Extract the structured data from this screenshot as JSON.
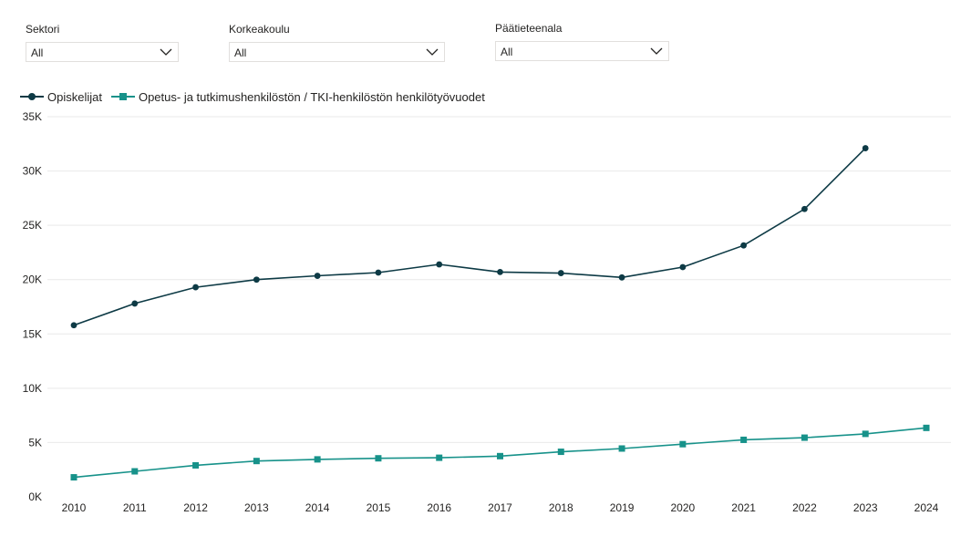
{
  "filters": [
    {
      "label": "Sektori",
      "value": "All"
    },
    {
      "label": "Korkeakoulu",
      "value": "All"
    },
    {
      "label": "Päätieteenala",
      "value": "All"
    }
  ],
  "chart_data": {
    "type": "line",
    "title": "",
    "xlabel": "",
    "ylabel": "",
    "x": [
      "2010",
      "2011",
      "2012",
      "2013",
      "2014",
      "2015",
      "2016",
      "2017",
      "2018",
      "2019",
      "2020",
      "2021",
      "2022",
      "2023",
      "2024"
    ],
    "ylim": [
      0,
      35000
    ],
    "yticks": [
      0,
      5000,
      10000,
      15000,
      20000,
      25000,
      30000,
      35000
    ],
    "ytick_labels": [
      "0K",
      "5K",
      "10K",
      "15K",
      "20K",
      "25K",
      "30K",
      "35K"
    ],
    "grid": true,
    "legend_position": "top-left",
    "series": [
      {
        "name": "Opiskelijat",
        "marker": "circle",
        "color": "#0d3a45",
        "values": [
          15800,
          17800,
          19300,
          20000,
          20350,
          20650,
          21400,
          20700,
          20600,
          20200,
          21150,
          23150,
          26500,
          32100,
          null
        ]
      },
      {
        "name": "Opetus- ja tutkimushenkilöstön / TKI-henkilöstön henkilötyövuodet",
        "marker": "square",
        "color": "#17928a",
        "values": [
          1800,
          2350,
          2900,
          3300,
          3450,
          3550,
          3600,
          3750,
          4150,
          4450,
          4850,
          5250,
          5450,
          5800,
          6350
        ]
      }
    ]
  }
}
